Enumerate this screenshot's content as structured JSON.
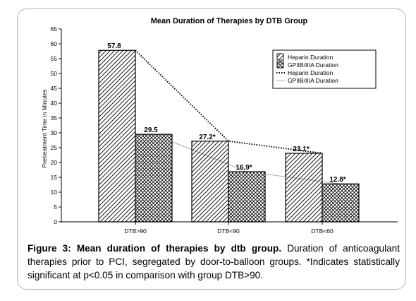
{
  "chart_data": {
    "type": "bar",
    "title": "Mean Duration of Therapies by DTB Group",
    "xlabel": "",
    "ylabel": "Pretreatment Time in Minutes",
    "ylim": [
      0,
      65
    ],
    "yticks": [
      "0",
      "5",
      "10",
      "15",
      "20",
      "25",
      "30",
      "35",
      "40",
      "45",
      "50",
      "55",
      "60",
      "65"
    ],
    "categories": [
      "DTB>90",
      "DTB<90",
      "DTB<60"
    ],
    "series": [
      {
        "name": "Heparin Duration",
        "kind": "bar",
        "pattern": "diagonal-hatch",
        "values": [
          57.8,
          27.2,
          23.1
        ],
        "labels": [
          "57.8",
          "27.2*",
          "23.1*"
        ]
      },
      {
        "name": "GPIIB/IIIA Duration",
        "kind": "bar",
        "pattern": "crosshatch",
        "values": [
          29.5,
          16.9,
          12.8
        ],
        "labels": [
          "29.5",
          "16.9*",
          "12.8*"
        ]
      },
      {
        "name": "Heparin Duration",
        "kind": "line",
        "style": "dotted",
        "values": [
          57.8,
          27.2,
          23.1
        ]
      },
      {
        "name": "GPIIB/IIIA Duration",
        "kind": "line",
        "style": "solid-gray",
        "values": [
          29.5,
          16.9,
          12.8
        ]
      }
    ],
    "legend_position": "top-right",
    "colors": {
      "bar_stroke": "#000000",
      "gp_line": "#a8a8a8",
      "hep_line": "#000000"
    }
  },
  "caption": {
    "label": "Figure 3: Mean duration of therapies by dtb group.",
    "text": " Duration of anticoagulant therapies prior to PCI, segregated by door-to-balloon groups. *Indicates statistically significant at p<0.05 in comparison with group DTB>90."
  }
}
